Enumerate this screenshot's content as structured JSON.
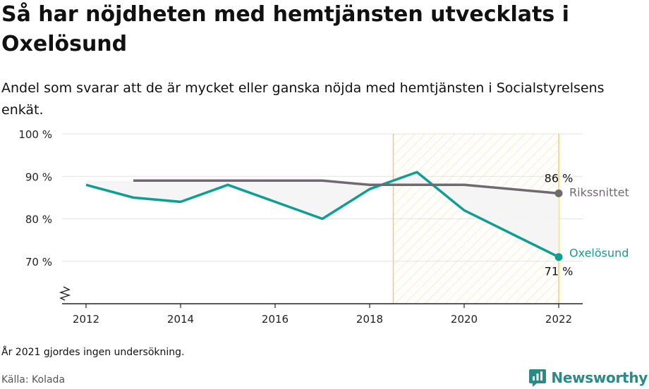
{
  "header": {
    "title": "Så har nöjdheten med hemtjänsten utvecklats i Oxelösund",
    "subtitle": "Andel som svarar att de är mycket eller ganska nöjda med hemtjänsten i Socialstyrelsens enkät."
  },
  "footer": {
    "note": "År 2021 gjordes ingen undersökning.",
    "source": "Källa: Kolada",
    "brand": "Newsworthy"
  },
  "colors": {
    "oxelosund": "#0f9e92",
    "riket": "#6e6a6f",
    "hatch": "#f5c842",
    "grid": "#e3e3e3",
    "fill": "#f4f4f4"
  },
  "chart_data": {
    "type": "line",
    "title": "Så har nöjdheten med hemtjänsten utvecklats i Oxelösund",
    "xlabel": "",
    "ylabel": "",
    "xlim": [
      2011.5,
      2022.5
    ],
    "ylim": [
      60,
      100
    ],
    "x_ticks": [
      2012,
      2014,
      2016,
      2018,
      2020,
      2022
    ],
    "x_tick_labels": [
      "2012",
      "2014",
      "2016",
      "2018",
      "2020",
      "2022"
    ],
    "y_ticks": [
      70,
      80,
      90,
      100
    ],
    "y_tick_labels": [
      "70 %",
      "80 %",
      "90 %",
      "100 %"
    ],
    "y_axis_break": true,
    "grid": true,
    "highlight_range": [
      2018.5,
      2022
    ],
    "series": [
      {
        "name": "Oxelösund",
        "x": [
          2012,
          2013,
          2014,
          2015,
          2016,
          2017,
          2018,
          2019,
          2020,
          2022
        ],
        "y": [
          88,
          85,
          84,
          88,
          84,
          80,
          87,
          91,
          82,
          71
        ],
        "end_label": "71 %"
      },
      {
        "name": "Rikssnittet",
        "x": [
          2013,
          2014,
          2015,
          2016,
          2017,
          2018,
          2019,
          2020,
          2022
        ],
        "y": [
          89,
          89,
          89,
          89,
          89,
          88,
          88,
          88,
          86
        ],
        "end_label": "86 %"
      }
    ]
  }
}
